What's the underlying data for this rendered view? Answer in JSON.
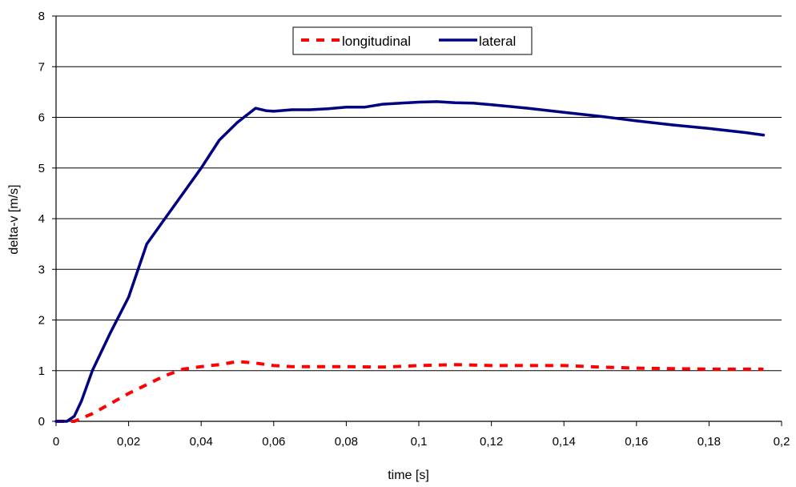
{
  "chart_data": {
    "type": "line",
    "title": "",
    "xlabel": "time [s]",
    "ylabel": "delta-v [m/s]",
    "xlim": [
      0,
      0.2
    ],
    "ylim": [
      0,
      8
    ],
    "x_ticks": [
      "0",
      "0,02",
      "0,04",
      "0,06",
      "0,08",
      "0,1",
      "0,12",
      "0,14",
      "0,16",
      "0,18",
      "0,2"
    ],
    "y_ticks": [
      "0",
      "1",
      "2",
      "3",
      "4",
      "5",
      "6",
      "7",
      "8"
    ],
    "grid": "horizontal",
    "legend_position": "top-center",
    "series": [
      {
        "name": "longitudinal",
        "color": "#ff0000",
        "style": "dashed",
        "x": [
          0,
          0.005,
          0.01,
          0.02,
          0.03,
          0.035,
          0.04,
          0.045,
          0.05,
          0.055,
          0.06,
          0.065,
          0.07,
          0.08,
          0.09,
          0.1,
          0.11,
          0.12,
          0.13,
          0.14,
          0.15,
          0.16,
          0.17,
          0.18,
          0.19,
          0.195
        ],
        "y": [
          0,
          0,
          0.15,
          0.55,
          0.9,
          1.03,
          1.08,
          1.12,
          1.18,
          1.15,
          1.1,
          1.08,
          1.08,
          1.08,
          1.07,
          1.1,
          1.12,
          1.1,
          1.1,
          1.1,
          1.07,
          1.05,
          1.04,
          1.03,
          1.03,
          1.03
        ]
      },
      {
        "name": "lateral",
        "color": "#000080",
        "style": "solid",
        "x": [
          0,
          0.003,
          0.005,
          0.007,
          0.01,
          0.015,
          0.02,
          0.025,
          0.03,
          0.035,
          0.04,
          0.045,
          0.05,
          0.055,
          0.058,
          0.06,
          0.065,
          0.07,
          0.075,
          0.08,
          0.085,
          0.09,
          0.1,
          0.105,
          0.11,
          0.115,
          0.12,
          0.13,
          0.14,
          0.15,
          0.16,
          0.17,
          0.18,
          0.19,
          0.195
        ],
        "y": [
          0,
          0,
          0.1,
          0.4,
          1.0,
          1.75,
          2.45,
          3.5,
          4.0,
          4.5,
          5.0,
          5.55,
          5.9,
          6.18,
          6.13,
          6.12,
          6.15,
          6.15,
          6.17,
          6.2,
          6.2,
          6.26,
          6.3,
          6.31,
          6.29,
          6.28,
          6.25,
          6.18,
          6.1,
          6.02,
          5.93,
          5.85,
          5.78,
          5.7,
          5.65
        ]
      }
    ]
  }
}
